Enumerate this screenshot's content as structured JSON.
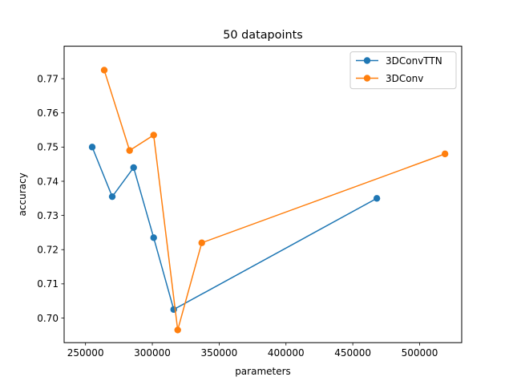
{
  "chart_data": {
    "type": "line",
    "title": "50 datapoints",
    "xlabel": "parameters",
    "ylabel": "accuracy",
    "xlim": [
      234000,
      531500
    ],
    "ylim": [
      0.6928,
      0.7795
    ],
    "xticks": [
      250000,
      300000,
      350000,
      400000,
      450000,
      500000
    ],
    "xtick_labels": [
      "250000",
      "300000",
      "350000",
      "400000",
      "450000",
      "500000"
    ],
    "yticks": [
      0.7,
      0.71,
      0.72,
      0.73,
      0.74,
      0.75,
      0.76,
      0.77
    ],
    "ytick_labels": [
      "0.70",
      "0.71",
      "0.72",
      "0.73",
      "0.74",
      "0.75",
      "0.76",
      "0.77"
    ],
    "grid": false,
    "legend_position": "top-right",
    "series": [
      {
        "name": "3DConvTTN",
        "color": "#1f77b4",
        "x": [
          255000,
          270000,
          286000,
          301000,
          316000,
          468000
        ],
        "y": [
          0.75,
          0.7355,
          0.744,
          0.7235,
          0.7025,
          0.735
        ]
      },
      {
        "name": "3DConv",
        "color": "#ff7f0e",
        "x": [
          264000,
          283000,
          301000,
          319000,
          337000,
          519000
        ],
        "y": [
          0.7725,
          0.749,
          0.7535,
          0.6965,
          0.722,
          0.748
        ]
      }
    ]
  }
}
